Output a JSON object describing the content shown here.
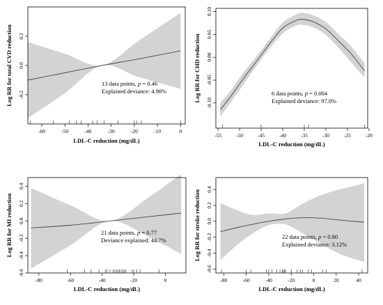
{
  "figure": {
    "colors": {
      "band": "#d3d3d3",
      "line": "#444444",
      "axis": "#000000",
      "frame": "#000000"
    }
  },
  "chart_data": [
    {
      "type": "line",
      "xlabel": "LDL-C reduction (mg/dL)",
      "ylabel": "Log RR for total CVD reduction",
      "xlim": [
        -66,
        2
      ],
      "ylim": [
        -0.4,
        0.4
      ],
      "xticks": [
        -60,
        -50,
        -40,
        -30,
        -20,
        -10,
        0
      ],
      "yticks": [
        -0.2,
        0.0,
        0.2
      ],
      "series": [
        {
          "x": [
            -66,
            -50,
            -34,
            -18,
            0
          ],
          "fit": [
            -0.1,
            -0.05,
            0.0,
            0.045,
            0.1
          ],
          "lower": [
            -0.36,
            -0.19,
            0.0,
            -0.08,
            -0.16
          ],
          "upper": [
            0.16,
            0.08,
            0.0,
            0.17,
            0.36
          ]
        }
      ],
      "rug": [
        -65,
        -55,
        -48,
        -45,
        -43,
        -38,
        -36,
        -33,
        -27,
        -20,
        -19,
        -17,
        0
      ],
      "annotation": {
        "n_text": "13 data points, ",
        "p_symbol": "p",
        "p_text": " = 0.46",
        "deviance": "Explained deviance: 4.98%"
      }
    },
    {
      "type": "line",
      "xlabel": "LDL-C reduction (mg/dL)",
      "ylabel": "Log RR for CHD reduction",
      "xlim": [
        -55.5,
        -20.3
      ],
      "ylim": [
        -0.155,
        0.107
      ],
      "xticks": [
        -55,
        -50,
        -45,
        -40,
        -35,
        -30,
        -25,
        -20
      ],
      "yticks": [
        -0.1,
        -0.05,
        0.0,
        0.05,
        0.1
      ],
      "series": [
        {
          "x": [
            -54.5,
            -52,
            -49,
            -46,
            -43,
            -40,
            -37,
            -35.5,
            -33,
            -30,
            -27,
            -24,
            -21
          ],
          "fit": [
            -0.115,
            -0.085,
            -0.045,
            -0.008,
            0.03,
            0.064,
            0.08,
            0.083,
            0.078,
            0.062,
            0.035,
            0.006,
            -0.03
          ],
          "lower": [
            -0.13,
            -0.098,
            -0.058,
            -0.018,
            0.02,
            0.052,
            0.069,
            0.071,
            0.066,
            0.049,
            0.02,
            -0.013,
            -0.045
          ],
          "upper": [
            -0.1,
            -0.072,
            -0.032,
            0.003,
            0.04,
            0.076,
            0.093,
            0.097,
            0.092,
            0.077,
            0.05,
            0.022,
            -0.013
          ]
        }
      ],
      "rug": [
        -54,
        -45,
        -35,
        -34,
        -21
      ],
      "annotation": {
        "n_text": "6 data points, ",
        "p_symbol": "p",
        "p_text": " = 0.004",
        "deviance": "Explained deviance: 97.0%"
      }
    },
    {
      "type": "line",
      "xlabel": "LDL-C reduction (mg/dL)",
      "ylabel": "Log RR for MI reduction",
      "xlim": [
        -87,
        13
      ],
      "ylim": [
        -0.6,
        0.5
      ],
      "xticks": [
        -80,
        -60,
        -40,
        -20,
        0
      ],
      "yticks": [
        -0.6,
        -0.4,
        -0.2,
        0.0,
        0.2,
        0.4
      ],
      "series": [
        {
          "x": [
            -85,
            -60,
            -35,
            -10,
            10
          ],
          "fit": [
            -0.08,
            -0.05,
            0.0,
            0.05,
            0.09
          ],
          "lower": [
            -0.55,
            -0.28,
            0.0,
            -0.19,
            -0.38
          ],
          "upper": [
            0.38,
            0.18,
            0.0,
            0.28,
            0.54
          ]
        }
      ],
      "rug": [
        -62,
        -51,
        -47,
        -42,
        -38,
        -37,
        -35,
        -33,
        -32,
        -31,
        -30,
        -29,
        -28,
        -27,
        -26,
        -25,
        -21,
        -20,
        -18,
        -16,
        -4
      ],
      "annotation": {
        "n_text": "21 data points, ",
        "p_symbol": "p",
        "p_text": " = 0.77",
        "deviance": "Deviance explained: 44.7%"
      }
    },
    {
      "type": "line",
      "xlabel": "LDL-C reduction (mg/dL)",
      "ylabel": "Log RR for stroke reduction",
      "xlim": [
        -87,
        48
      ],
      "ylim": [
        -0.65,
        0.55
      ],
      "xticks": [
        -80,
        -60,
        -40,
        -20,
        0,
        20,
        40
      ],
      "yticks": [
        -0.6,
        -0.4,
        -0.2,
        0.0,
        0.2,
        0.4
      ],
      "series": [
        {
          "x": [
            -83,
            -70,
            -55,
            -40,
            -25,
            -10,
            5,
            20,
            35,
            45
          ],
          "fit": [
            -0.13,
            -0.085,
            -0.04,
            0.0,
            0.03,
            0.045,
            0.04,
            0.02,
            0.0,
            -0.01
          ],
          "lower": [
            -0.49,
            -0.32,
            -0.16,
            -0.05,
            -0.04,
            -0.15,
            -0.27,
            -0.39,
            -0.47,
            -0.51
          ],
          "upper": [
            0.23,
            0.15,
            0.08,
            0.1,
            0.1,
            0.22,
            0.32,
            0.39,
            0.44,
            0.48
          ]
        }
      ],
      "rug": [
        -82,
        -60,
        -56,
        -42,
        -40,
        -37,
        -33,
        -30,
        -28,
        -27,
        -26,
        -25,
        -20,
        -15,
        -12,
        -10,
        -5,
        -2,
        8,
        11,
        43
      ],
      "annotation": {
        "n_text": "22 data points, ",
        "p_symbol": "p",
        "p_text": " = 0.80",
        "deviance": "Explained deviance: 3.12%"
      }
    }
  ]
}
